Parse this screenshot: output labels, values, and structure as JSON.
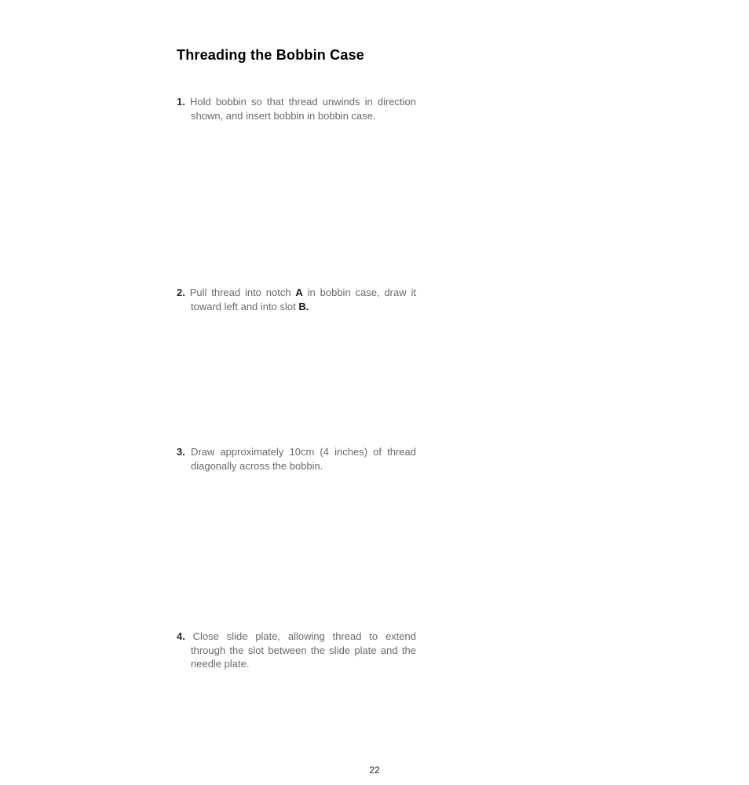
{
  "document": {
    "title": "Threading the Bobbin Case",
    "page_number": "22",
    "font": {
      "title_size_pt": 18,
      "body_size_pt": 13,
      "title_weight": 700
    },
    "colors": {
      "bg": "#ffffff",
      "title": "#000000",
      "body": "#6a6a6a",
      "num": "#2a2a2a"
    },
    "steps": [
      {
        "num": "1.",
        "text": "Hold bobbin so that thread unwinds in direction shown, and insert bobbin in bobbin case."
      },
      {
        "num": "2.",
        "prefix": "Pull thread into notch ",
        "bold1": "A",
        "mid": " in bobbin case, draw it toward left and into slot ",
        "bold2": "B."
      },
      {
        "num": "3.",
        "text": "Draw approximately 10cm (4 inches) of thread diagonally across the bobbin."
      },
      {
        "num": "4.",
        "text": "Close slide plate, allowing thread to extend through the slot between the slide plate and the needle plate."
      }
    ]
  }
}
